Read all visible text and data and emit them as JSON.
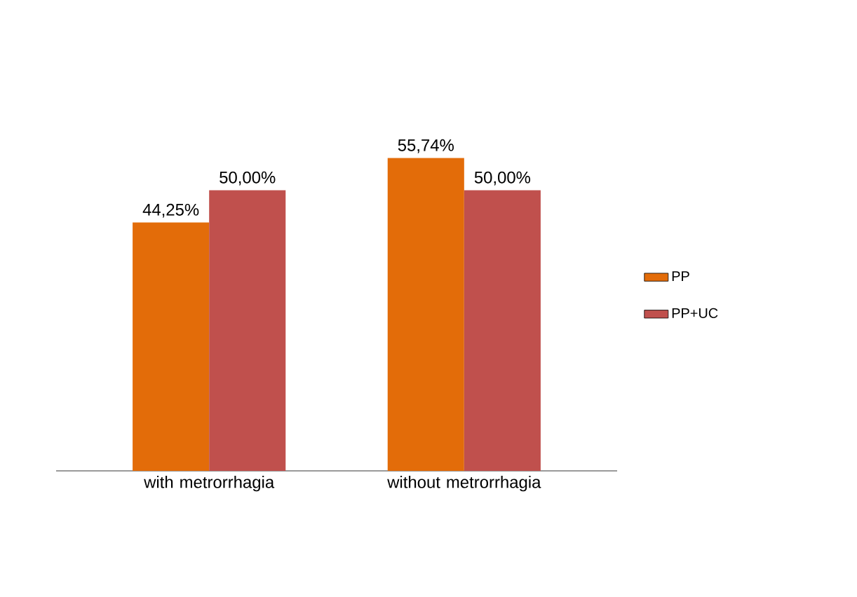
{
  "chart_data": {
    "type": "bar",
    "categories": [
      "with metrorrhagia",
      "without metrorrhagia"
    ],
    "series": [
      {
        "name": "PP",
        "color": "#e36c09",
        "values": [
          44.25,
          55.74
        ],
        "value_labels": [
          "44,25%",
          "55,74%"
        ]
      },
      {
        "name": "PP+UC",
        "color": "#c0504d",
        "values": [
          50.0,
          50.0
        ],
        "value_labels": [
          "50,00%",
          "50,00%"
        ]
      }
    ],
    "tick_labels": "x",
    "legend": "right",
    "grid": false
  }
}
